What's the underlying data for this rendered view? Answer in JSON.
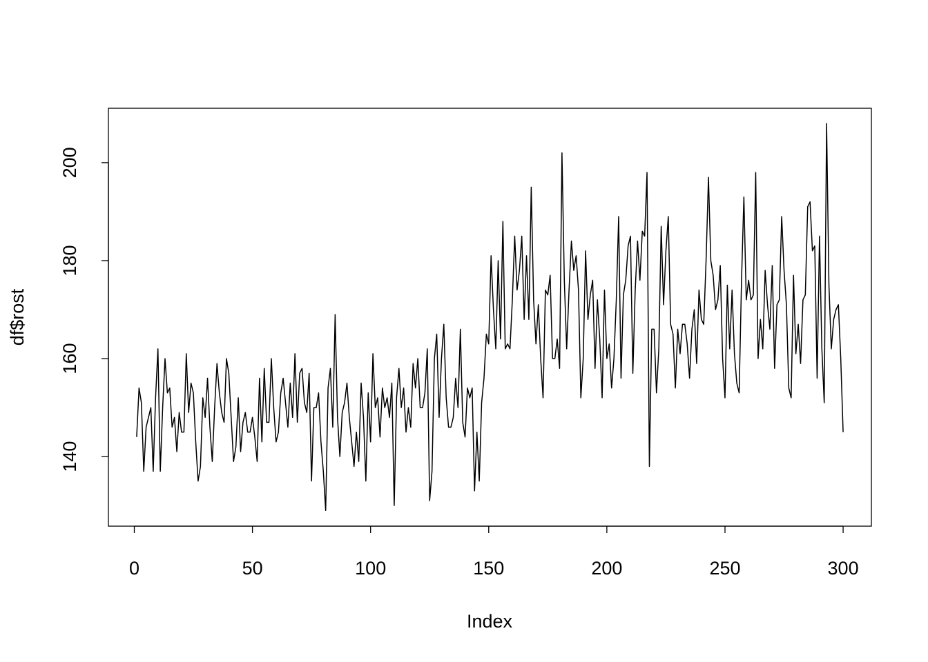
{
  "chart_data": {
    "type": "line",
    "xlabel": "Index",
    "ylabel": "df$rost",
    "color": "#000000",
    "xlim": [
      -10.96,
      311.96
    ],
    "ylim": [
      125.8,
      211.1
    ],
    "xticks": [
      0,
      50,
      100,
      150,
      200,
      250,
      300
    ],
    "yticks": [
      140,
      160,
      180,
      200
    ],
    "x": [
      1,
      2,
      3,
      4,
      5,
      6,
      7,
      8,
      9,
      10,
      11,
      12,
      13,
      14,
      15,
      16,
      17,
      18,
      19,
      20,
      21,
      22,
      23,
      24,
      25,
      26,
      27,
      28,
      29,
      30,
      31,
      32,
      33,
      34,
      35,
      36,
      37,
      38,
      39,
      40,
      41,
      42,
      43,
      44,
      45,
      46,
      47,
      48,
      49,
      50,
      51,
      52,
      53,
      54,
      55,
      56,
      57,
      58,
      59,
      60,
      61,
      62,
      63,
      64,
      65,
      66,
      67,
      68,
      69,
      70,
      71,
      72,
      73,
      74,
      75,
      76,
      77,
      78,
      79,
      80,
      81,
      82,
      83,
      84,
      85,
      86,
      87,
      88,
      89,
      90,
      91,
      92,
      93,
      94,
      95,
      96,
      97,
      98,
      99,
      100,
      101,
      102,
      103,
      104,
      105,
      106,
      107,
      108,
      109,
      110,
      111,
      112,
      113,
      114,
      115,
      116,
      117,
      118,
      119,
      120,
      121,
      122,
      123,
      124,
      125,
      126,
      127,
      128,
      129,
      130,
      131,
      132,
      133,
      134,
      135,
      136,
      137,
      138,
      139,
      140,
      141,
      142,
      143,
      144,
      145,
      146,
      147,
      148,
      149,
      150,
      151,
      152,
      153,
      154,
      155,
      156,
      157,
      158,
      159,
      160,
      161,
      162,
      163,
      164,
      165,
      166,
      167,
      168,
      169,
      170,
      171,
      172,
      173,
      174,
      175,
      176,
      177,
      178,
      179,
      180,
      181,
      182,
      183,
      184,
      185,
      186,
      187,
      188,
      189,
      190,
      191,
      192,
      193,
      194,
      195,
      196,
      197,
      198,
      199,
      200,
      201,
      202,
      203,
      204,
      205,
      206,
      207,
      208,
      209,
      210,
      211,
      212,
      213,
      214,
      215,
      216,
      217,
      218,
      219,
      220,
      221,
      222,
      223,
      224,
      225,
      226,
      227,
      228,
      229,
      230,
      231,
      232,
      233,
      234,
      235,
      236,
      237,
      238,
      239,
      240,
      241,
      242,
      243,
      244,
      245,
      246,
      247,
      248,
      249,
      250,
      251,
      252,
      253,
      254,
      255,
      256,
      257,
      258,
      259,
      260,
      261,
      262,
      263,
      264,
      265,
      266,
      267,
      268,
      269,
      270,
      271,
      272,
      273,
      274,
      275,
      276,
      277,
      278,
      279,
      280,
      281,
      282,
      283,
      284,
      285,
      286,
      287,
      288,
      289,
      290,
      291,
      292,
      293,
      294,
      295,
      296,
      297,
      298,
      299,
      300
    ],
    "values": [
      144,
      154,
      151,
      137,
      146,
      148,
      150,
      137,
      152,
      162,
      137,
      150,
      160,
      153,
      154,
      146,
      148,
      141,
      149,
      145,
      145,
      161,
      149,
      155,
      153,
      143,
      135,
      138,
      152,
      148,
      156,
      146,
      139,
      150,
      159,
      153,
      149,
      147,
      160,
      157,
      148,
      139,
      142,
      152,
      141,
      147,
      149,
      145,
      145,
      148,
      144,
      139,
      156,
      143,
      158,
      147,
      147,
      160,
      150,
      143,
      145,
      153,
      156,
      151,
      146,
      155,
      148,
      161,
      147,
      157,
      158,
      151,
      149,
      157,
      135,
      150,
      150,
      153,
      143,
      137,
      129,
      154,
      158,
      146,
      169,
      148,
      140,
      149,
      151,
      155,
      148,
      143,
      138,
      145,
      139,
      155,
      148,
      135,
      153,
      143,
      161,
      150,
      152,
      144,
      154,
      150,
      152,
      148,
      155,
      130,
      152,
      158,
      150,
      154,
      145,
      150,
      146,
      159,
      154,
      160,
      150,
      150,
      153,
      162,
      131,
      137,
      160,
      165,
      148,
      160,
      167,
      152,
      146,
      146,
      148,
      156,
      150,
      166,
      147,
      144,
      154,
      152,
      154,
      133,
      145,
      135,
      151,
      156,
      165,
      163,
      181,
      170,
      162,
      180,
      164,
      188,
      162,
      163,
      162,
      172,
      185,
      174,
      178,
      185,
      168,
      181,
      168,
      195,
      172,
      163,
      171,
      160,
      152,
      174,
      173,
      177,
      160,
      160,
      164,
      158,
      202,
      176,
      162,
      174,
      184,
      178,
      181,
      174,
      152,
      160,
      182,
      168,
      173,
      176,
      158,
      172,
      164,
      152,
      174,
      160,
      163,
      154,
      160,
      172,
      189,
      156,
      173,
      176,
      183,
      185,
      157,
      174,
      184,
      176,
      186,
      185,
      198,
      138,
      166,
      166,
      153,
      162,
      187,
      171,
      182,
      189,
      167,
      165,
      154,
      166,
      161,
      167,
      167,
      163,
      156,
      166,
      170,
      159,
      174,
      168,
      167,
      180,
      197,
      180,
      177,
      170,
      172,
      179,
      160,
      152,
      175,
      162,
      174,
      161,
      155,
      153,
      176,
      193,
      172,
      176,
      172,
      173,
      198,
      160,
      168,
      162,
      178,
      171,
      166,
      179,
      158,
      171,
      172,
      189,
      178,
      171,
      154,
      152,
      177,
      161,
      167,
      159,
      172,
      173,
      191,
      192,
      182,
      183,
      156,
      185,
      162,
      151,
      208,
      175,
      162,
      168,
      170,
      171,
      160,
      145
    ]
  }
}
